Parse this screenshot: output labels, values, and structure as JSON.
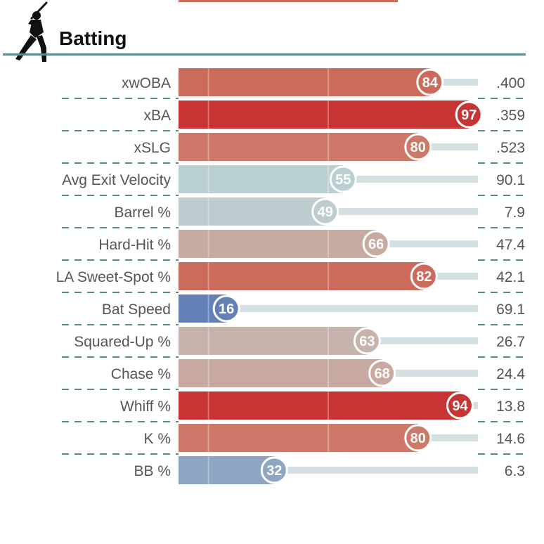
{
  "section": {
    "title": "Batting",
    "icon": "batter-silhouette-icon"
  },
  "colors": {
    "divider": "#5b8a8c",
    "dash": "#5b8a8c",
    "track": "#d2e0e2",
    "vline": "#e9b8ad",
    "text": "#555555",
    "title": "#111111"
  },
  "chart_data": {
    "type": "bar",
    "orientation": "horizontal",
    "xlim": [
      0,
      100
    ],
    "categories": [
      "xwOBA",
      "xBA",
      "xSLG",
      "Avg Exit Velocity",
      "Barrel %",
      "Hard-Hit %",
      "LA Sweet-Spot %",
      "Bat Speed",
      "Squared-Up %",
      "Chase %",
      "Whiff %",
      "K %",
      "BB %"
    ],
    "percentiles": [
      84,
      97,
      80,
      55,
      49,
      66,
      82,
      16,
      63,
      68,
      94,
      80,
      32
    ],
    "values": [
      ".400",
      ".359",
      ".523",
      "90.1",
      "7.9",
      "47.4",
      "42.1",
      "69.1",
      "26.7",
      "24.4",
      "13.8",
      "14.6",
      "6.3"
    ],
    "colors": [
      "#cc6b5b",
      "#c63433",
      "#cd7868",
      "#bacfd1",
      "#bccccf",
      "#c7aaa2",
      "#cc6b5c",
      "#6481b7",
      "#c6b3ac",
      "#c8a9a1",
      "#c63434",
      "#cd7868",
      "#8fa6c3"
    ]
  }
}
